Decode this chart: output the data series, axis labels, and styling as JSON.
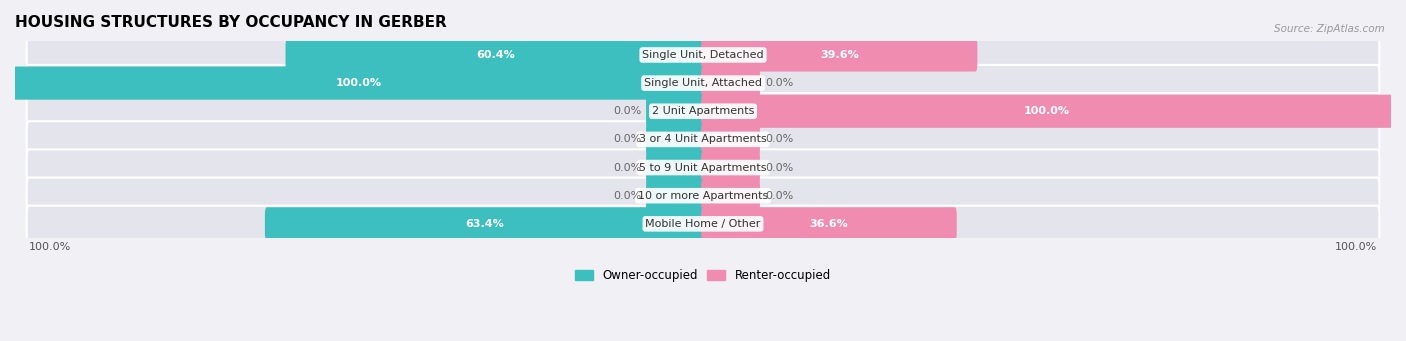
{
  "title": "HOUSING STRUCTURES BY OCCUPANCY IN GERBER",
  "source": "Source: ZipAtlas.com",
  "categories": [
    "Single Unit, Detached",
    "Single Unit, Attached",
    "2 Unit Apartments",
    "3 or 4 Unit Apartments",
    "5 to 9 Unit Apartments",
    "10 or more Apartments",
    "Mobile Home / Other"
  ],
  "owner_pct": [
    60.4,
    100.0,
    0.0,
    0.0,
    0.0,
    0.0,
    63.4
  ],
  "renter_pct": [
    39.6,
    0.0,
    100.0,
    0.0,
    0.0,
    0.0,
    36.6
  ],
  "owner_color": "#3dbfbf",
  "renter_color": "#f08cb0",
  "bg_color": "#f0f0f5",
  "bar_bg_color": "#e4e4ec",
  "bar_height": 0.62,
  "figsize": [
    14.06,
    3.41
  ],
  "dpi": 100,
  "title_fontsize": 11,
  "label_fontsize": 8,
  "pct_fontsize": 8,
  "axis_label_fontsize": 8,
  "legend_fontsize": 8.5,
  "zero_stub": 8.0
}
